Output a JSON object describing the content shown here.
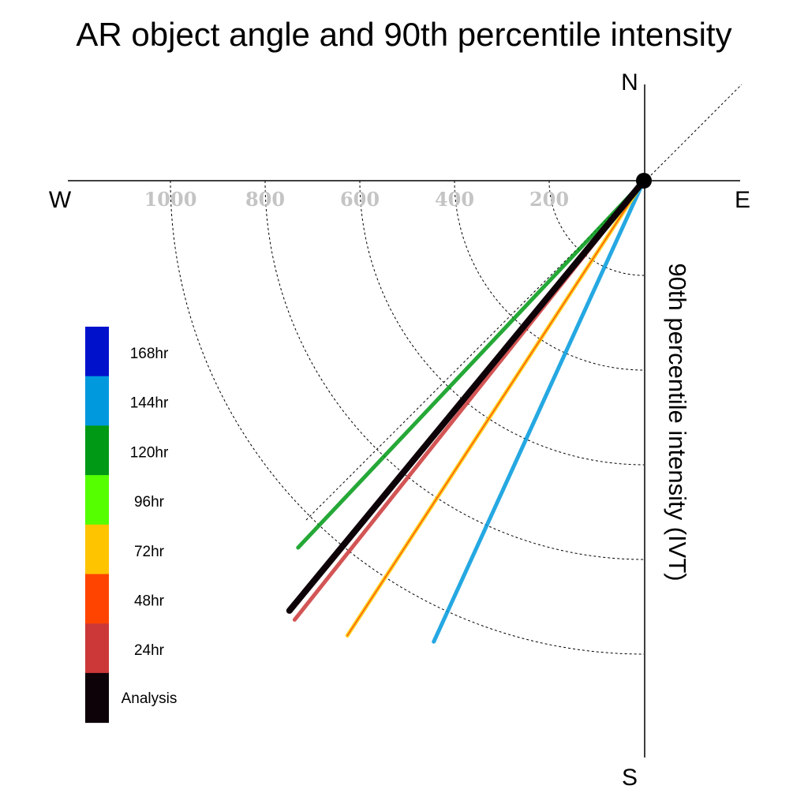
{
  "chart_data": {
    "type": "polar-line",
    "title": "AR object angle and 90th percentile intensity",
    "ylabel": "90th percentile intensity (IVT)",
    "compass": {
      "north": "N",
      "south": "S",
      "east": "E",
      "west": "W"
    },
    "radial_ticks": [
      "1000",
      "800",
      "600",
      "400",
      "200"
    ],
    "radial_tick_values": [
      1000,
      800,
      600,
      400,
      200
    ],
    "radial_max": 1200,
    "series": [
      {
        "name": "144hr",
        "color": "#0099dd",
        "angle_deg": 204.5,
        "intensity": 1070
      },
      {
        "name": "72hr",
        "color": "#ffcc00",
        "angle_deg": 213.1,
        "intensity": 1147
      },
      {
        "name": "48hr",
        "color": "#ff4400",
        "angle_deg": 213.1,
        "intensity": 1147
      },
      {
        "name": "24hr",
        "color": "#cc3838",
        "angle_deg": 218.5,
        "intensity": 1185
      },
      {
        "name": "120hr",
        "color": "#009915",
        "angle_deg": 223.3,
        "intensity": 1065
      },
      {
        "name": "Analysis",
        "color": "#0d0208",
        "angle_deg": 219.5,
        "intensity": 1177
      }
    ],
    "legend": [
      {
        "label": "168hr",
        "color": "#0011cc"
      },
      {
        "label": "144hr",
        "color": "#0099dd"
      },
      {
        "label": "120hr",
        "color": "#009915"
      },
      {
        "label": "96hr",
        "color": "#55ff00"
      },
      {
        "label": "72hr",
        "color": "#ffc400"
      },
      {
        "label": "48hr",
        "color": "#ff4400"
      },
      {
        "label": "24hr",
        "color": "#cc3838"
      },
      {
        "label": "Analysis",
        "color": "#0d0208"
      }
    ]
  }
}
